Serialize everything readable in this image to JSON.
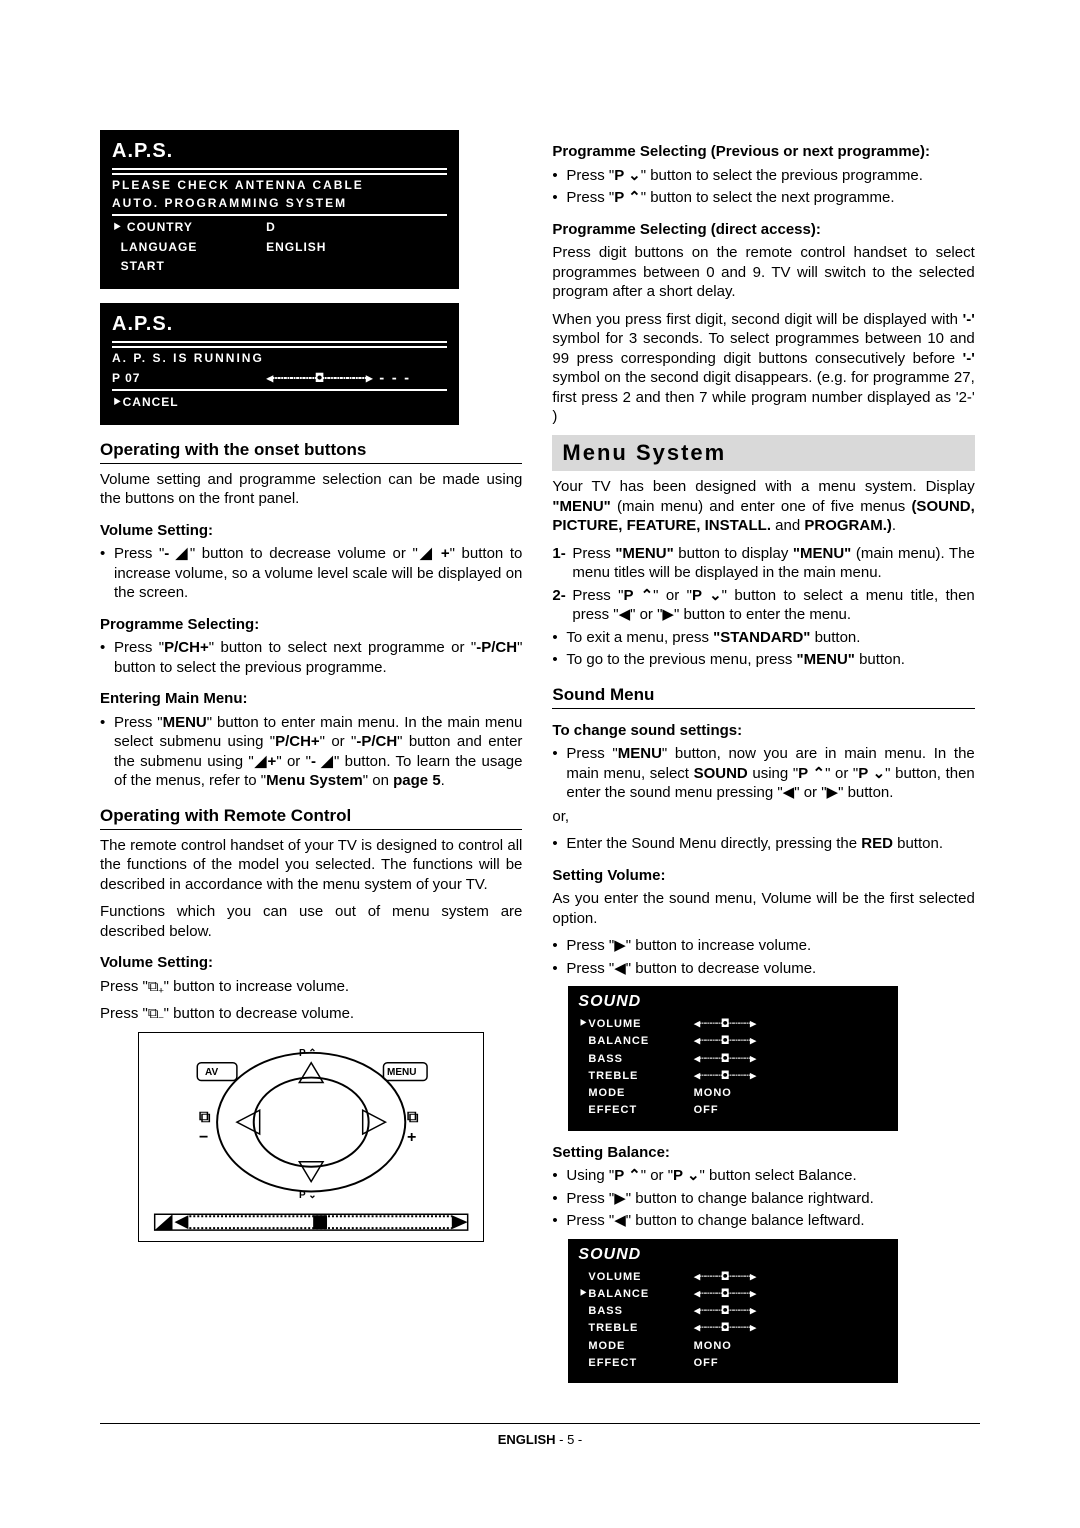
{
  "aps_box1": {
    "title": "A.P.S.",
    "line1": "PLEASE CHECK ANTENNA CABLE",
    "line2": "AUTO.  PROGRAMMING  SYSTEM",
    "rows": [
      {
        "k": "COUNTRY",
        "v": "D",
        "ptr": true
      },
      {
        "k": "LANGUAGE",
        "v": "ENGLISH",
        "ptr": false
      },
      {
        "k": "START",
        "v": "",
        "ptr": false
      }
    ]
  },
  "aps_box2": {
    "title": "A.P.S.",
    "line1": "A. P. S.  IS  RUNNING",
    "prog": "P 07",
    "cancel": "CANCEL"
  },
  "left": {
    "sec1_title": "Operating with the onset buttons",
    "sec1_p": "Volume setting and programme selection can be made using the buttons on the front panel.",
    "vol_title": "Volume Setting:",
    "vol_b1_a": "Press \"",
    "vol_b1_b": "- ◢",
    "vol_b1_c": "\" button to decrease volume or \"",
    "vol_b1_d": "◢ +",
    "vol_b1_e": "\" button to increase volume, so a volume level scale will be displayed on the screen.",
    "prog_title": "Programme Selecting:",
    "prog_b1_a": "Press \"",
    "prog_b1_b": "P/CH+",
    "prog_b1_c": "\" button to select next programme or \"",
    "prog_b1_d": "-P/CH",
    "prog_b1_e": "\" button to select the previous programme.",
    "main_title": "Entering Main Menu:",
    "main_b1_a": "Press \"",
    "main_b1_b": "MENU",
    "main_b1_c": "\" button to enter main menu. In the main menu select submenu using \"",
    "main_b1_d": "P/CH+",
    "main_b1_e": "\" or \"",
    "main_b1_f": "-P/CH",
    "main_b1_g": "\" button and enter the submenu using \"",
    "main_b1_h": "◢+",
    "main_b1_i": "\" or \"",
    "main_b1_j": "- ◢",
    "main_b1_k": "\"  button. To learn the usage of the menus, refer to \"",
    "main_b1_l": "Menu System",
    "main_b1_m": "\" on ",
    "main_b1_n": "page 5",
    "main_b1_o": ".",
    "sec2_title": "Operating with Remote Control",
    "sec2_p1": "The remote control handset of your TV is designed to control all the functions of the model you selected. The functions will be described  in accordance with the menu system of your TV.",
    "sec2_p2": "Functions which you can use out of menu system are described below.",
    "vol2_title": "Volume Setting:",
    "vol2_p1_a": "Press \"",
    "vol2_p1_b": "\" button to increase volume.",
    "vol2_p2_a": "Press \"",
    "vol2_p2_b": "\"  button  to decrease volume.",
    "remote": {
      "av": "AV",
      "menu": "MENU",
      "pup": "P ⌃",
      "pdn": "P ⌄",
      "plus": "+",
      "minus": "−"
    }
  },
  "right": {
    "progsel_title": "Programme Selecting (Previous or next programme):",
    "progsel_b1_a": "Press \"",
    "progsel_b1_b": "P ⌄",
    "progsel_b1_c": "\" button to select the previous programme.",
    "progsel_b2_a": "Press \"",
    "progsel_b2_b": "P ⌃",
    "progsel_b2_c": "\" button to select the next programme.",
    "direct_title": "Programme Selecting (direct access):",
    "direct_p1": "Press digit buttons on the remote control handset to select programmes between 0 and 9. TV will switch to the selected program after a short delay.",
    "direct_p2_a": "When you press first digit, second digit will be displayed with ",
    "direct_p2_b": "'-'",
    "direct_p2_c": " symbol for 3 seconds. To select programmes between 10 and 99 press corresponding digit buttons consecutively before ",
    "direct_p2_d": "'-'",
    "direct_p2_e": " symbol on the second digit disappears. (e.g. for programme 27, first press 2 and then 7 while program number displayed as '2-' )",
    "menu_title": "Menu  System",
    "menu_p1_a": "Your TV has been designed with a menu system. Display ",
    "menu_p1_b": "\"MENU\"",
    "menu_p1_c": " (main menu) and enter one of five menus ",
    "menu_p1_d": "(SOUND, PICTURE, FEATURE, INSTALL.",
    "menu_p1_e": " and ",
    "menu_p1_f": "PROGRAM.)",
    "menu_p1_g": ".",
    "menu_n1_a": "Press ",
    "menu_n1_b": "\"MENU\"",
    "menu_n1_c": " button to display ",
    "menu_n1_d": "\"MENU\"",
    "menu_n1_e": " (main menu). The menu titles will be displayed in the main menu.",
    "menu_n2_a": "Press \"",
    "menu_n2_b": "P ⌃",
    "menu_n2_c": "\" or \"",
    "menu_n2_d": "P ⌄",
    "menu_n2_e": "\" button to select a menu title, then press \"◀\" or \"▶\" button to enter the menu.",
    "menu_b1_a": "To exit a menu, press ",
    "menu_b1_b": "\"STANDARD\"",
    "menu_b1_c": " button.",
    "menu_b2_a": "To go to the previous menu, press ",
    "menu_b2_b": "\"MENU\"",
    "menu_b2_c": " button.",
    "sound_title": "Sound Menu",
    "sound_sub1": "To change sound settings:",
    "sound_b1_a": "Press \"",
    "sound_b1_b": "MENU",
    "sound_b1_c": "\" button, now you are in main menu. In the main menu, select ",
    "sound_b1_d": "SOUND",
    "sound_b1_e": " using \"",
    "sound_b1_f": "P ⌃",
    "sound_b1_g": "\" or \"",
    "sound_b1_h": "P ⌄",
    "sound_b1_i": "\" button, then enter the sound menu pressing \"◀\" or \"▶\" button.",
    "sound_or": "or,",
    "sound_b2_a": "Enter the Sound Menu directly, pressing the ",
    "sound_b2_b": "RED",
    "sound_b2_c": " button.",
    "setvol_title": "Setting Volume:",
    "setvol_p": "As you enter the sound menu, Volume will be the first selected option.",
    "setvol_b1": "Press \"▶\" button to increase volume.",
    "setvol_b2": "Press \"◀\" button to decrease volume.",
    "setbal_title": "Setting Balance:",
    "setbal_b1_a": "Using \"",
    "setbal_b1_b": "P ⌃",
    "setbal_b1_c": "\" or \"",
    "setbal_b1_d": "P ⌄",
    "setbal_b1_e": "\" button select Balance.",
    "setbal_b2": "Press \"▶\" button to change balance rightward.",
    "setbal_b3": "Press \"◀\" button to change balance leftward.",
    "sound_osd": {
      "title": "SOUND",
      "rows": [
        {
          "k": "VOLUME",
          "slider": true
        },
        {
          "k": "BALANCE",
          "slider": true
        },
        {
          "k": "BASS",
          "slider": true
        },
        {
          "k": "TREBLE",
          "slider": true
        },
        {
          "k": "MODE",
          "v": "MONO"
        },
        {
          "k": "EFFECT",
          "v": "OFF"
        }
      ],
      "pointer1": 0,
      "pointer2": 1
    }
  },
  "footer_a": "ENGLISH",
  "footer_b": "  - 5 -"
}
